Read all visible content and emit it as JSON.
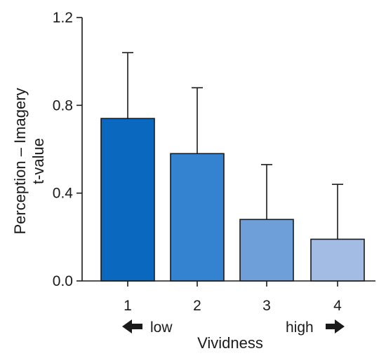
{
  "chart_data": {
    "type": "bar",
    "title": "",
    "ylabel_line1": "Perception – Imagery",
    "ylabel_line2": "t-value",
    "xlabel": "Vividness",
    "categories": [
      "1",
      "2",
      "3",
      "4"
    ],
    "values": [
      0.74,
      0.58,
      0.28,
      0.19
    ],
    "error_upper": [
      1.04,
      0.88,
      0.53,
      0.44
    ],
    "bar_colors": [
      "#0a68be",
      "#3383d1",
      "#6f9fd8",
      "#a3bce4"
    ],
    "ylim": [
      0,
      1.2
    ],
    "yticks": [
      "0.0",
      "0.4",
      "0.8",
      "1.2"
    ],
    "ytick_values": [
      0.0,
      0.4,
      0.8,
      1.2
    ],
    "grid": false,
    "legend": "none",
    "low_label": "low",
    "high_label": "high"
  }
}
